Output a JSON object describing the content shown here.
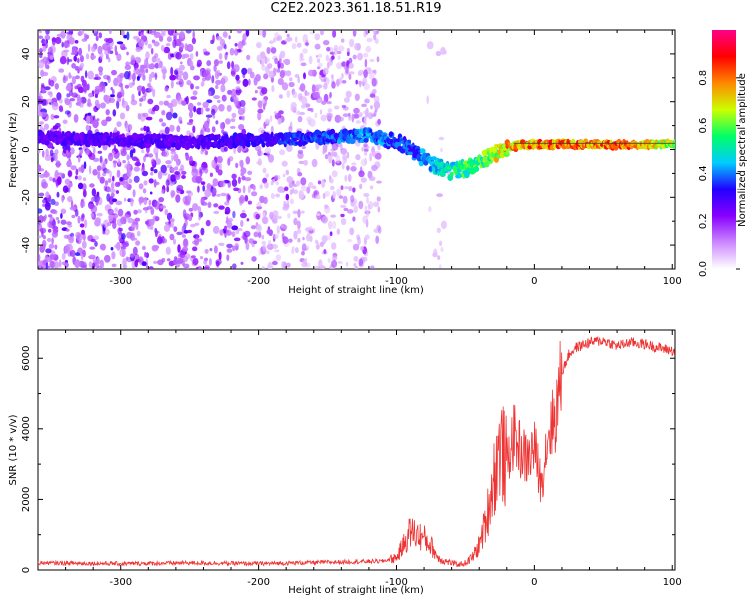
{
  "title": "C2E2.2023.361.18.51.R19",
  "chart_data": [
    {
      "type": "heatmap",
      "xlabel": "Height of straight line (km)",
      "ylabel": "Frequency (Hz)",
      "xlim": [
        -360,
        102
      ],
      "ylim": [
        -50,
        50
      ],
      "xticks": [
        -300,
        -200,
        -100,
        0,
        100
      ],
      "yticks": [
        -40,
        -20,
        0,
        20,
        40
      ],
      "colorbar": {
        "label": "Normalized spectral amplitude",
        "range": [
          0,
          1
        ],
        "ticks": [
          "0.0",
          "0.2",
          "0.4",
          "0.6",
          "0.8"
        ],
        "colors": [
          "#ffffff",
          "#cc88ff",
          "#8800ff",
          "#2200ff",
          "#00ccff",
          "#00ff66",
          "#ccff00",
          "#ff8800",
          "#ff0000",
          "#ff0088"
        ]
      },
      "ridge": {
        "x": [
          -360,
          -300,
          -250,
          -200,
          -150,
          -120,
          -100,
          -90,
          -80,
          -70,
          -60,
          -50,
          -40,
          -30,
          -20,
          -10,
          0,
          10,
          30,
          60,
          100
        ],
        "y": [
          5,
          4,
          3,
          4,
          5,
          6,
          3,
          0,
          -4,
          -7,
          -9,
          -8,
          -5,
          -2,
          1,
          2,
          2,
          2,
          2,
          2,
          2
        ],
        "amplitude": [
          0.3,
          0.3,
          0.3,
          0.35,
          0.4,
          0.45,
          0.4,
          0.4,
          0.45,
          0.5,
          0.55,
          0.6,
          0.6,
          0.7,
          0.8,
          0.85,
          0.85,
          0.9,
          0.9,
          0.9,
          0.7
        ]
      }
    },
    {
      "type": "line",
      "xlabel": "Height of straight line (km)",
      "ylabel": "SNR (10 * v/v)",
      "xlim": [
        -360,
        102
      ],
      "ylim": [
        0,
        6800
      ],
      "xticks": [
        -300,
        -200,
        -100,
        0,
        100
      ],
      "yticks": [
        0,
        2000,
        4000,
        6000
      ],
      "color": "#ee3333",
      "series": [
        {
          "x": [
            -360,
            -300,
            -250,
            -200,
            -150,
            -110,
            -100,
            -95,
            -90,
            -85,
            -80,
            -75,
            -70,
            -65,
            -60,
            -55,
            -50,
            -45,
            -40,
            -35,
            -30,
            -25,
            -20,
            -15,
            -10,
            -5,
            0,
            5,
            10,
            15,
            20,
            25,
            30,
            40,
            50,
            60,
            70,
            80,
            90,
            102
          ],
          "values": [
            200,
            180,
            200,
            180,
            220,
            250,
            350,
            700,
            1100,
            1000,
            900,
            700,
            350,
            250,
            200,
            150,
            200,
            350,
            700,
            1400,
            2500,
            3500,
            3000,
            3800,
            3400,
            3100,
            3500,
            2400,
            3900,
            4300,
            5600,
            6100,
            6300,
            6450,
            6500,
            6350,
            6450,
            6400,
            6300,
            6200
          ]
        }
      ]
    }
  ]
}
